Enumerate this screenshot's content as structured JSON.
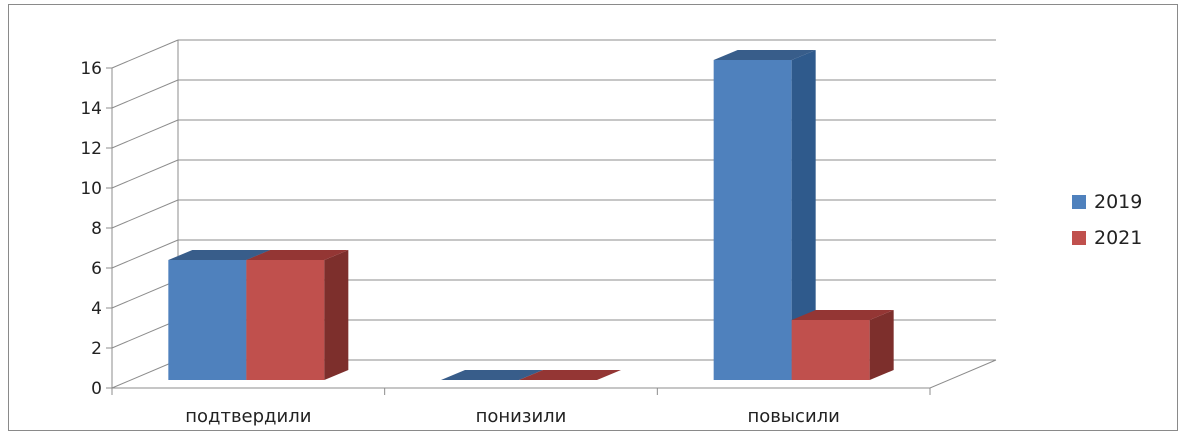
{
  "chart_data": {
    "type": "bar",
    "style": "3d-clustered-column",
    "categories": [
      "подтвердили",
      "понизили",
      "повысили"
    ],
    "series": [
      {
        "name": "2019",
        "values": [
          6,
          0,
          16
        ],
        "color": "#4F81BD",
        "side_color": "#2F5A8C",
        "top_color": "#385D8A"
      },
      {
        "name": "2021",
        "values": [
          6,
          0,
          3
        ],
        "color": "#C0504D",
        "side_color": "#7D2F2C",
        "top_color": "#943634"
      }
    ],
    "ylim": [
      0,
      16
    ],
    "yticks": [
      "0",
      "2",
      "4",
      "6",
      "8",
      "10",
      "12",
      "14",
      "16"
    ],
    "grid": true,
    "legend_position": "right"
  }
}
